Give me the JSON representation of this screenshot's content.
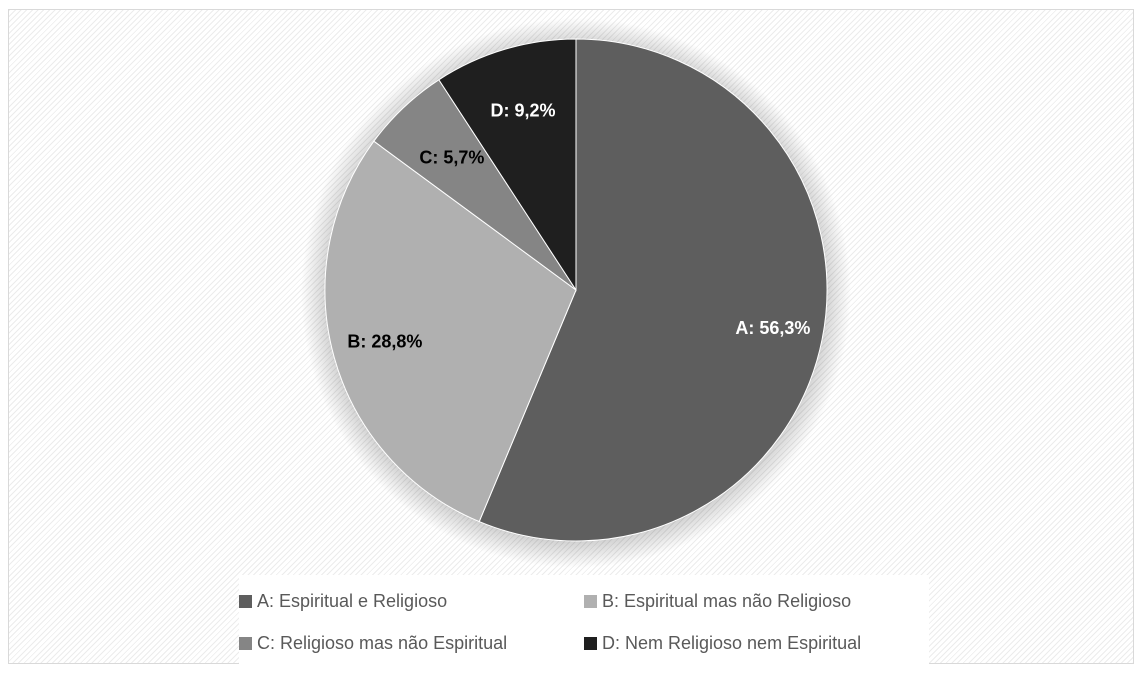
{
  "chart_data": {
    "type": "pie",
    "slices": [
      {
        "label": "A: Espiritual e Religioso",
        "short": "A",
        "value": 56.3,
        "data_label": "A: 56,3%",
        "color": "#5e5e5e",
        "label_color": "#ffffff"
      },
      {
        "label": "B: Espiritual mas não Religioso",
        "short": "B",
        "value": 28.8,
        "data_label": "B: 28,8%",
        "color": "#b0b0b0",
        "label_color": "#000000"
      },
      {
        "label": "C: Religioso mas não Espiritual",
        "short": "C",
        "value": 5.7,
        "data_label": "C: 5,7%",
        "color": "#858585",
        "label_color": "#000000"
      },
      {
        "label": "D: Nem Religioso nem Espiritual",
        "short": "D",
        "value": 9.2,
        "data_label": "D: 9,2%",
        "color": "#1f1f1f",
        "label_color": "#ffffff"
      }
    ],
    "start": "12 o'clock",
    "direction": "clockwise",
    "legend_position": "bottom"
  }
}
